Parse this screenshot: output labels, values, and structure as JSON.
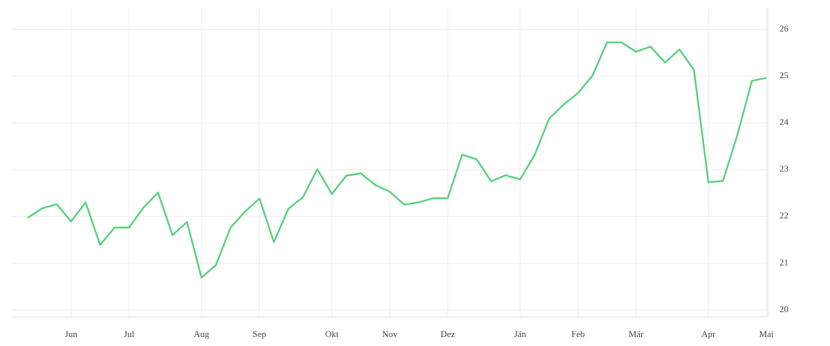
{
  "chart_data": {
    "type": "line",
    "categories": [
      null,
      null,
      null,
      "Jun",
      null,
      null,
      null,
      "Jul",
      null,
      null,
      null,
      null,
      "Aug",
      null,
      null,
      null,
      "Sep",
      null,
      null,
      null,
      null,
      "Okt",
      null,
      null,
      null,
      "Nov",
      null,
      null,
      null,
      "Dez",
      null,
      null,
      null,
      null,
      "Jän",
      null,
      null,
      null,
      "Feb",
      null,
      null,
      null,
      "Mär",
      null,
      null,
      null,
      null,
      "Apr",
      null,
      null,
      null,
      "Mai"
    ],
    "series": [
      {
        "color": "#55d17b",
        "values": [
          21.97,
          22.17,
          22.26,
          21.89,
          22.3,
          21.39,
          21.76,
          21.76,
          22.19,
          22.51,
          21.6,
          21.88,
          20.69,
          20.96,
          21.76,
          22.1,
          22.38,
          21.45,
          22.16,
          22.41,
          23.01,
          22.48,
          22.87,
          22.92,
          22.67,
          22.53,
          22.25,
          22.3,
          22.39,
          22.39,
          23.32,
          23.22,
          22.75,
          22.88,
          22.79,
          23.31,
          24.09,
          24.39,
          24.64,
          25.01,
          25.72,
          25.72,
          25.52,
          25.63,
          25.29,
          25.57,
          25.13,
          22.73,
          22.76,
          23.74,
          24.9,
          24.96
        ]
      }
    ],
    "ylim": [
      19.85,
      26.45
    ],
    "yticks": [
      20,
      21,
      22,
      23,
      24,
      25,
      26
    ],
    "y_axis_side": "right",
    "grid": true
  }
}
